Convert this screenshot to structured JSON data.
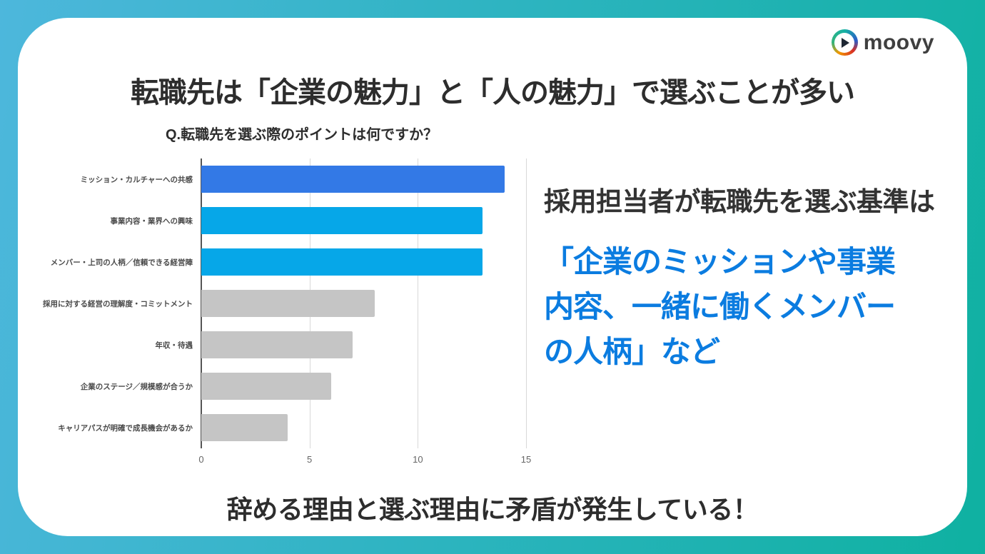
{
  "branding": {
    "logo_text": "moovy"
  },
  "title": "転職先は「企業の魅力」と「人の魅力」で選ぶことが多い",
  "chart_data": {
    "type": "bar",
    "orientation": "horizontal",
    "title": "Q.転職先を選ぶ際のポイントは何ですか？",
    "categories": [
      "ミッション・カルチャーへの共感",
      "事業内容・業界への興味",
      "メンバー・上司の人柄／信頼できる経営陣",
      "採用に対する経営の理解度・コミットメント",
      "年収・待遇",
      "企業のステージ／規模感が合うか",
      "キャリアパスが明確で成長機会があるか"
    ],
    "values": [
      14,
      13,
      13,
      8,
      7,
      6,
      4
    ],
    "bar_colors": [
      "#3379e6",
      "#06a7e8",
      "#06a7e8",
      "#c5c5c5",
      "#c5c5c5",
      "#c5c5c5",
      "#c5c5c5"
    ],
    "xlim": [
      0,
      15
    ],
    "xticks": [
      0,
      5,
      10,
      15
    ],
    "grid": true,
    "legend": null
  },
  "right_panel": {
    "lead": "採用担当者が転職先を選ぶ基準は",
    "highlight_lines": [
      "「企業のミッションや事業",
      "内容、一緒に働くメンバー",
      "の人柄」など"
    ],
    "highlight_text": "「企業のミッションや事業内容、一緒に働くメンバーの人柄」など",
    "highlight_color": "#0b7ce0"
  },
  "footer": {
    "text": "辞める理由と選ぶ理由に矛盾が発生している！"
  },
  "colors": {
    "frame_gradient_start": "#4db7dc",
    "frame_gradient_end": "#0fb1a1",
    "bar_blue": "#3379e6",
    "bar_cyan": "#06a7e8",
    "bar_gray": "#c5c5c5"
  }
}
